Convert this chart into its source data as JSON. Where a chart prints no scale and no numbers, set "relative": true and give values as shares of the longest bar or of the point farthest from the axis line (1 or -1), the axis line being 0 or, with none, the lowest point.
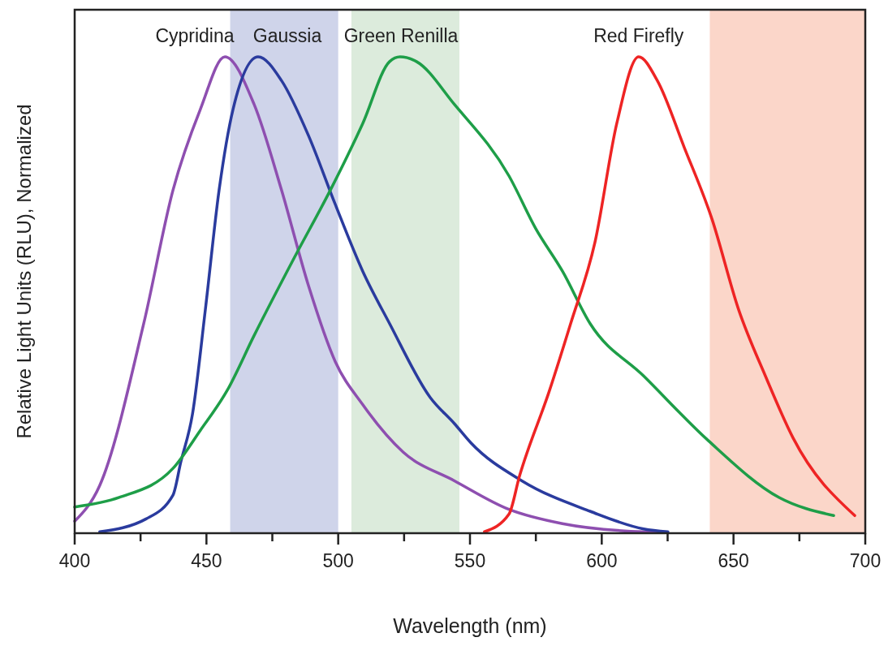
{
  "chart_data": {
    "type": "line",
    "relative": true,
    "xlabel": "Wavelength (nm)",
    "ylabel": "Relative Light Units (RLU), Normalized",
    "xlim": [
      400,
      700
    ],
    "xticks": [
      400,
      {
        "value": 425,
        "label": null
      },
      450,
      {
        "value": 475,
        "label": null
      },
      500,
      {
        "value": 525,
        "label": null
      },
      550,
      {
        "value": 575,
        "label": null
      },
      600,
      {
        "value": 625,
        "label": null
      },
      650,
      {
        "value": 675,
        "label": null
      },
      700
    ],
    "grid": false,
    "legend": false,
    "marker": "none",
    "line_style": "solid",
    "bands": [
      {
        "axis": "x",
        "from": 459,
        "to": 500,
        "color": "#cfd4ea"
      },
      {
        "axis": "x",
        "from": 505,
        "to": 546,
        "color": "#dcebdc"
      },
      {
        "axis": "x",
        "from": 641,
        "to": 700,
        "color": "#fbd6c9"
      }
    ],
    "series": [
      {
        "name": "Cypridina",
        "color": "#8e4fb0",
        "x": [
          400,
          409.5,
          426.2,
          437.3,
          447.7,
          457,
          468.1,
          478.5,
          488.7,
          498.9,
          509.3,
          524.7,
          544.1,
          564.8,
          585.1,
          615.9,
          624.8
        ],
        "values": [
          0.025,
          0.1,
          0.44,
          0.72,
          0.89,
          1.0,
          0.9,
          0.72,
          0.52,
          0.36,
          0.27,
          0.17,
          0.11,
          0.05,
          0.02,
          0.003,
          0.002
        ]
      },
      {
        "name": "Gaussia",
        "color": "#2a3b9e",
        "x": [
          409.5,
          427.1,
          437.3,
          440.3,
          444.7,
          449.6,
          454.8,
          460.1,
          469.6,
          478.5,
          488.7,
          498.9,
          509.3,
          519.5,
          534.9,
          544.1,
          550.3,
          569.7,
          595.6,
          615.9,
          625.1
        ],
        "values": [
          0.003,
          0.03,
          0.08,
          0.15,
          0.25,
          0.47,
          0.72,
          0.89,
          1.0,
          0.95,
          0.835,
          0.69,
          0.55,
          0.44,
          0.285,
          0.23,
          0.19,
          0.11,
          0.046,
          0.009,
          0.003
        ]
      },
      {
        "name": "Green Renilla",
        "color": "#1e9e48",
        "x": [
          400,
          416.9,
          437.3,
          447.7,
          457.9,
          468.1,
          483.5,
          497,
          509.3,
          519.5,
          523.5,
          529.7,
          544.1,
          564.8,
          574.9,
          585.1,
          595.6,
          615.9,
          640.5,
          667.3,
          688
        ],
        "values": [
          0.055,
          0.075,
          0.136,
          0.216,
          0.3,
          0.415,
          0.58,
          0.72,
          0.86,
          0.99,
          1.0,
          0.99,
          0.9,
          0.75,
          0.64,
          0.55,
          0.44,
          0.33,
          0.194,
          0.075,
          0.037
        ]
      },
      {
        "name": "Red Firefly",
        "color": "#ee2424",
        "x": [
          555.5,
          564.8,
          568.8,
          580.2,
          588.2,
          597.4,
          605.7,
          614,
          621.1,
          631.3,
          641.8,
          651.9,
          662.1,
          672.6,
          696
        ],
        "values": [
          0.003,
          0.04,
          0.12,
          0.3,
          0.44,
          0.61,
          0.86,
          1.0,
          0.95,
          0.81,
          0.66,
          0.47,
          0.33,
          0.2,
          0.037
        ]
      }
    ]
  }
}
